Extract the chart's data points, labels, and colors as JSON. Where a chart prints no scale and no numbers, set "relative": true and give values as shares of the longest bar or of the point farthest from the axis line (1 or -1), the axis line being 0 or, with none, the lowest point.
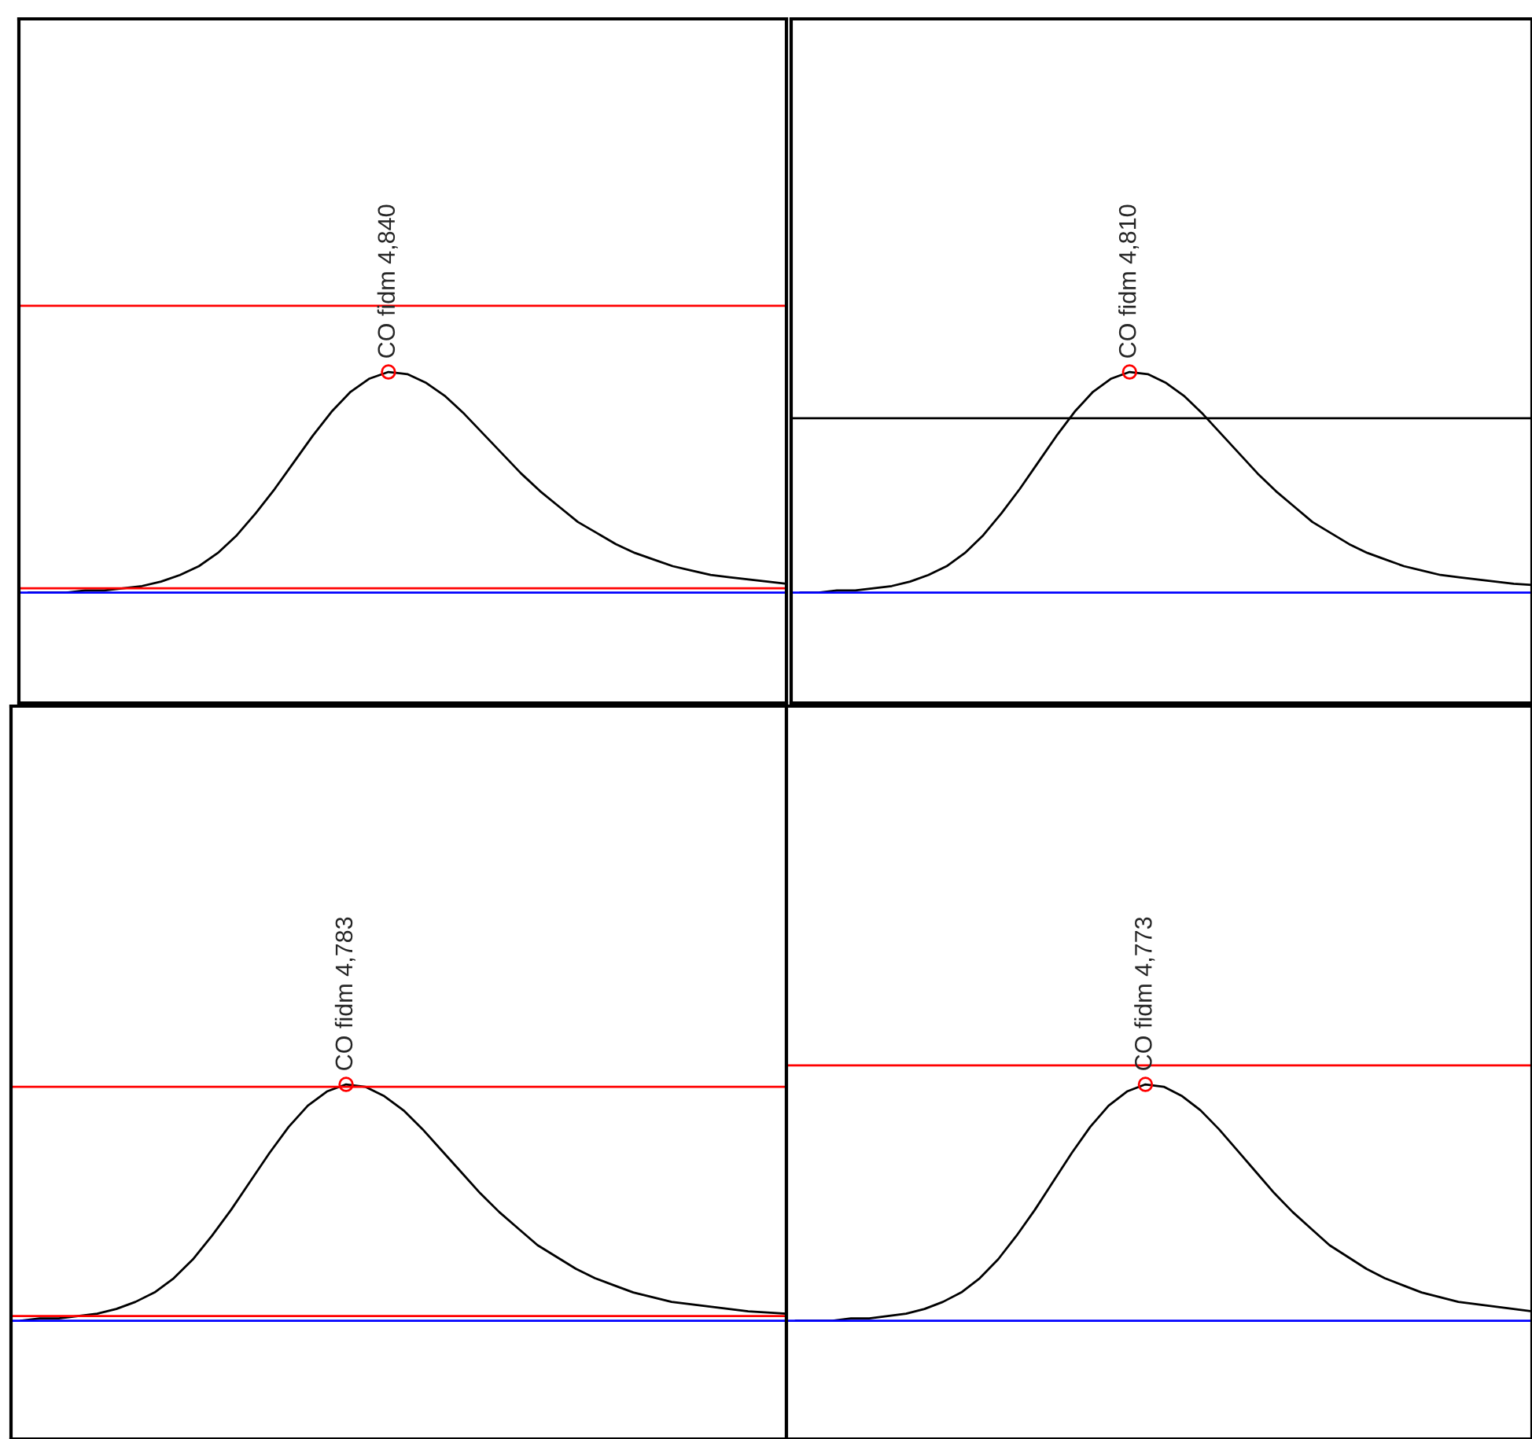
{
  "chart_data": [
    {
      "type": "line",
      "relative": true,
      "categories": [
        null,
        null,
        null,
        null,
        null,
        null,
        null,
        null,
        null,
        null,
        null,
        null,
        null,
        null,
        null,
        null,
        null,
        null,
        null,
        null,
        null,
        null,
        null,
        null,
        null,
        null,
        null,
        null,
        null,
        null,
        null,
        null,
        null,
        null,
        null,
        null,
        null,
        null,
        null,
        null,
        null
      ],
      "series": [
        {
          "color": "#000000",
          "values": [
            0,
            0,
            0,
            0.01,
            0.01,
            0.02,
            0.03,
            0.05,
            0.08,
            0.12,
            0.18,
            0.26,
            0.36,
            0.47,
            0.59,
            0.71,
            0.82,
            0.91,
            0.97,
            1.0,
            0.99,
            0.95,
            0.89,
            0.81,
            0.72,
            0.63,
            0.54,
            0.46,
            0.39,
            0.32,
            0.27,
            0.22,
            0.18,
            0.15,
            0.12,
            0.1,
            0.08,
            0.07,
            0.06,
            0.05,
            0.04
          ]
        }
      ],
      "ref_lines": [
        {
          "axis": "y",
          "value": 1.3,
          "color": "#ff0000"
        },
        {
          "axis": "y",
          "value": 0.02,
          "color": "#ff0000"
        },
        {
          "axis": "y",
          "value": 0,
          "color": "#0000ff"
        }
      ],
      "annotations": [
        {
          "text": "CO fidm 4,840",
          "y": 1.0
        }
      ]
    },
    {
      "type": "line",
      "relative": true,
      "categories": [
        null,
        null,
        null,
        null,
        null,
        null,
        null,
        null,
        null,
        null,
        null,
        null,
        null,
        null,
        null,
        null,
        null,
        null,
        null,
        null,
        null,
        null,
        null,
        null,
        null,
        null,
        null,
        null,
        null,
        null,
        null,
        null,
        null,
        null,
        null,
        null,
        null,
        null,
        null,
        null,
        null
      ],
      "series": [
        {
          "color": "#000000",
          "values": [
            0,
            0,
            0.01,
            0.01,
            0.02,
            0.03,
            0.05,
            0.08,
            0.12,
            0.18,
            0.26,
            0.36,
            0.47,
            0.59,
            0.71,
            0.82,
            0.91,
            0.97,
            1.0,
            0.99,
            0.95,
            0.89,
            0.81,
            0.72,
            0.63,
            0.54,
            0.46,
            0.39,
            0.32,
            0.27,
            0.22,
            0.18,
            0.15,
            0.12,
            0.1,
            0.08,
            0.07,
            0.06,
            0.05,
            0.04,
            0.035
          ]
        }
      ],
      "ref_lines": [
        {
          "axis": "y",
          "value": 0.79,
          "color": "#000000"
        },
        {
          "axis": "y",
          "value": 0,
          "color": "#0000ff"
        }
      ],
      "annotations": [
        {
          "text": "CO fidm 4,810",
          "y": 1.0
        }
      ]
    },
    {
      "type": "line",
      "relative": true,
      "categories": [
        null,
        null,
        null,
        null,
        null,
        null,
        null,
        null,
        null,
        null,
        null,
        null,
        null,
        null,
        null,
        null,
        null,
        null,
        null,
        null,
        null,
        null,
        null,
        null,
        null,
        null,
        null,
        null,
        null,
        null,
        null,
        null,
        null,
        null,
        null,
        null,
        null,
        null,
        null,
        null,
        null
      ],
      "series": [
        {
          "color": "#000000",
          "values": [
            0,
            0.01,
            0.01,
            0.02,
            0.03,
            0.05,
            0.08,
            0.12,
            0.18,
            0.26,
            0.36,
            0.47,
            0.59,
            0.71,
            0.82,
            0.91,
            0.97,
            1.0,
            0.99,
            0.95,
            0.89,
            0.81,
            0.72,
            0.63,
            0.54,
            0.46,
            0.39,
            0.32,
            0.27,
            0.22,
            0.18,
            0.15,
            0.12,
            0.1,
            0.08,
            0.07,
            0.06,
            0.05,
            0.04,
            0.035,
            0.03
          ]
        }
      ],
      "ref_lines": [
        {
          "axis": "y",
          "value": 0.99,
          "color": "#ff0000"
        },
        {
          "axis": "y",
          "value": 0.02,
          "color": "#ff0000"
        },
        {
          "axis": "y",
          "value": 0,
          "color": "#0000ff"
        }
      ],
      "annotations": [
        {
          "text": "CO fidm 4,783",
          "y": 1.0
        }
      ]
    },
    {
      "type": "line",
      "relative": true,
      "categories": [
        null,
        null,
        null,
        null,
        null,
        null,
        null,
        null,
        null,
        null,
        null,
        null,
        null,
        null,
        null,
        null,
        null,
        null,
        null,
        null,
        null,
        null,
        null,
        null,
        null,
        null,
        null,
        null,
        null,
        null,
        null,
        null,
        null,
        null,
        null,
        null,
        null,
        null,
        null,
        null,
        null
      ],
      "series": [
        {
          "color": "#000000",
          "values": [
            0,
            0,
            0,
            0.01,
            0.01,
            0.02,
            0.03,
            0.05,
            0.08,
            0.12,
            0.18,
            0.26,
            0.36,
            0.47,
            0.59,
            0.71,
            0.82,
            0.91,
            0.97,
            1.0,
            0.99,
            0.95,
            0.89,
            0.81,
            0.72,
            0.63,
            0.54,
            0.46,
            0.39,
            0.32,
            0.27,
            0.22,
            0.18,
            0.15,
            0.12,
            0.1,
            0.08,
            0.07,
            0.06,
            0.05,
            0.04
          ]
        }
      ],
      "ref_lines": [
        {
          "axis": "y",
          "value": 1.08,
          "color": "#ff0000"
        },
        {
          "axis": "y",
          "value": 0,
          "color": "#0000ff"
        }
      ],
      "annotations": [
        {
          "text": "CO fidm 4,773",
          "y": 1.0
        }
      ]
    }
  ]
}
